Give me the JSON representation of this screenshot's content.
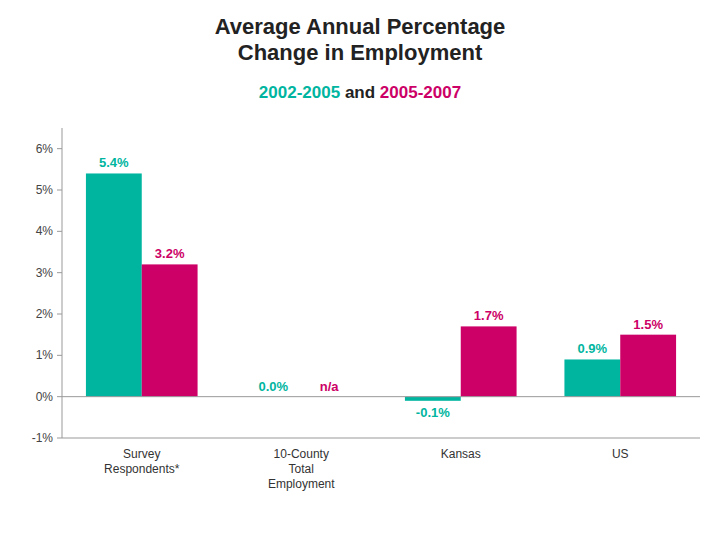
{
  "chart_data": {
    "type": "bar",
    "title": "Average Annual Percentage\nChange in Employment",
    "subtitle": "2002-2005 and 2005-2007",
    "categories": [
      "Survey\nRespondents*",
      "10-County\nTotal\nEmployment",
      "Kansas",
      "US"
    ],
    "series": [
      {
        "name": "2002-2005",
        "color": "#00B5A0",
        "values": [
          5.4,
          0.0,
          -0.1,
          0.9
        ],
        "value_labels": [
          "5.4%",
          "0.0%",
          "-0.1%",
          "0.9%"
        ]
      },
      {
        "name": "2005-2007",
        "color": "#CC0066",
        "values": [
          3.2,
          null,
          1.7,
          1.5
        ],
        "value_labels": [
          "3.2%",
          "n/a",
          "1.7%",
          "1.5%"
        ]
      }
    ],
    "ylim": [
      -1.0,
      6.5
    ],
    "yticks": [
      {
        "value": -1.0,
        "label": "-1%"
      },
      {
        "value": 0.0,
        "label": "0%"
      },
      {
        "value": 1.0,
        "label": "1%"
      },
      {
        "value": 2.0,
        "label": "2%"
      },
      {
        "value": 3.0,
        "label": "3%"
      },
      {
        "value": 4.0,
        "label": "4%"
      },
      {
        "value": 5.0,
        "label": "5%"
      },
      {
        "value": 6.0,
        "label": "6%"
      }
    ],
    "grid": false,
    "data_labels": true
  }
}
